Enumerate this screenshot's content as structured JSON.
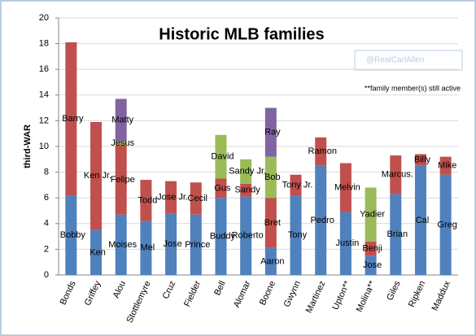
{
  "chart_data": {
    "type": "stacked_bar",
    "title": "Historic MLB families",
    "ylabel": "third-WAR",
    "watermark": "@RealCarlAllen",
    "note": "**family member(s) still active",
    "categories": [
      "Bonds",
      "Griffey",
      "Alou",
      "Stottlemyre",
      "Cruz",
      "Fielder",
      "Bell",
      "Alomar",
      "Boone",
      "Gwynn",
      "Martinez",
      "Upton**",
      "Molina**",
      "Giles",
      "Ripken",
      "Maddux"
    ],
    "series": [
      {
        "color": "#4f81bd",
        "values": [
          6.2,
          3.5,
          4.7,
          4.2,
          4.8,
          4.7,
          6.0,
          6.1,
          2.1,
          6.2,
          8.5,
          4.9,
          1.5,
          6.3,
          8.5,
          7.8
        ],
        "labels": [
          "Bobby",
          "Ken",
          "Moises",
          "Mel",
          "Jose",
          "Prince",
          "Buddy",
          "Roberto",
          "Aaron",
          "Tony",
          "Pedro",
          "Justin",
          "Jose",
          "Brian",
          "Cal",
          "Greg"
        ]
      },
      {
        "color": "#c0504d",
        "values": [
          11.9,
          8.4,
          5.4,
          3.2,
          2.5,
          2.5,
          1.5,
          1.0,
          3.9,
          1.6,
          2.2,
          3.8,
          1.1,
          3.0,
          0.9,
          1.4
        ],
        "labels": [
          "Barry",
          "Ken Jr.",
          "Felipe",
          "Todd",
          "Jose Jr.",
          "Cecil",
          "Gus",
          "Sandy",
          "Bret",
          "Tony Jr.",
          "Ramon",
          "Melvin",
          "Benji",
          "Marcus.",
          "Billy",
          "Mike"
        ]
      },
      {
        "color": "#9bbb59",
        "values": [
          null,
          null,
          0.3,
          null,
          null,
          null,
          3.4,
          1.9,
          3.2,
          null,
          null,
          null,
          4.2,
          null,
          null,
          null
        ],
        "labels": [
          null,
          null,
          "Jesus",
          null,
          null,
          null,
          "David",
          "Sandy Jr.",
          "Bob",
          null,
          null,
          null,
          "Yadier",
          null,
          null,
          null
        ]
      },
      {
        "color": "#8064a2",
        "values": [
          null,
          null,
          3.3,
          null,
          null,
          null,
          null,
          null,
          3.8,
          null,
          null,
          null,
          null,
          null,
          null,
          null
        ],
        "labels": [
          null,
          null,
          "Matty",
          null,
          null,
          null,
          null,
          null,
          "Ray",
          null,
          null,
          null,
          null,
          null,
          null,
          null
        ]
      }
    ],
    "ylim": [
      0,
      20
    ],
    "yticks": [
      0,
      2,
      4,
      6,
      8,
      10,
      12,
      14,
      16,
      18,
      20
    ],
    "grid": true
  }
}
